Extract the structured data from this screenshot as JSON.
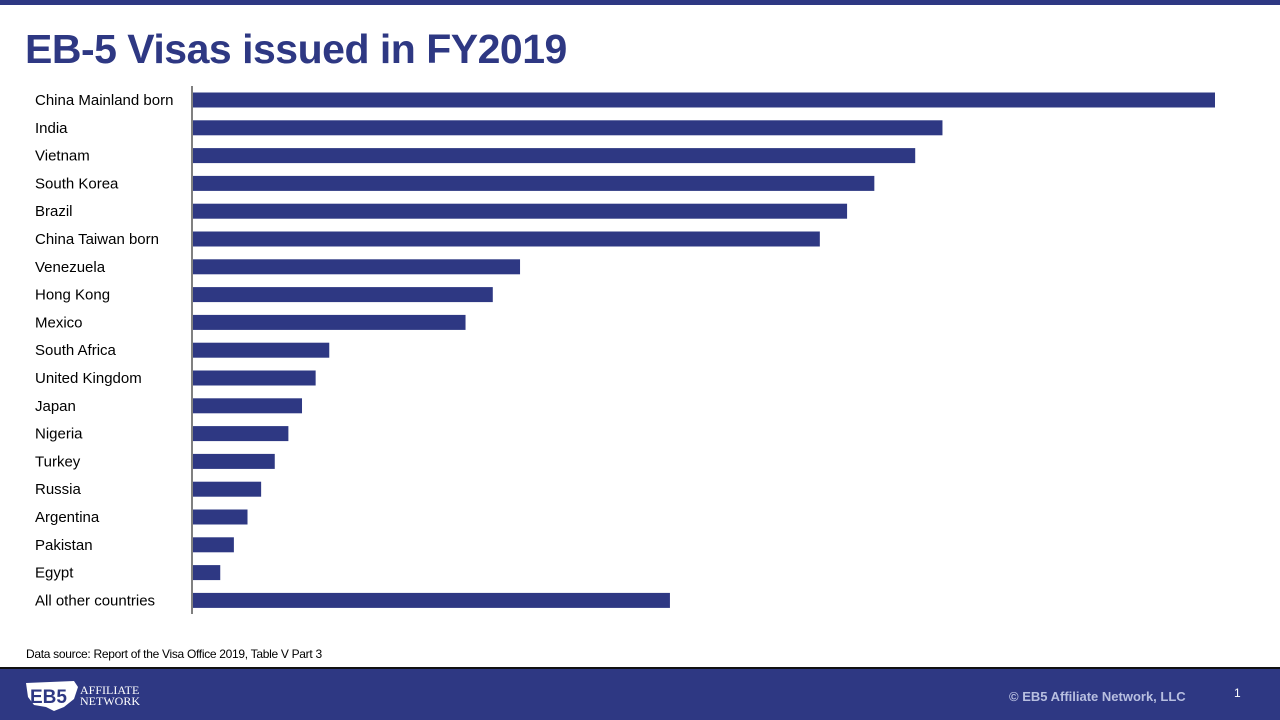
{
  "slide": {
    "title": "EB-5 Visas issued in FY2019",
    "source": "Data source: Report of the Visa Office 2019, Table V Part 3",
    "footer": {
      "logo_text_top": "AFFILIATE",
      "logo_text_bottom": "NETWORK",
      "logo_mark": "EB5",
      "copyright": "© EB5  Affiliate Network, LLC",
      "page_number": "1"
    },
    "colors": {
      "brand": "#2e3883",
      "bar": "#2e3883"
    }
  },
  "chart_data": {
    "type": "bar",
    "orientation": "horizontal",
    "title": "EB-5 Visas issued in FY2019",
    "xlabel": "",
    "ylabel": "",
    "grid": false,
    "legend": "none",
    "categories": [
      "China Mainland born",
      "India",
      "Vietnam",
      "South Korea",
      "Brazil",
      "China Taiwan born",
      "Venezuela",
      "Hong Kong",
      "Mexico",
      "South Africa",
      "United Kingdom",
      "Japan",
      "Nigeria",
      "Turkey",
      "Russia",
      "Argentina",
      "Pakistan",
      "Egypt",
      "All other countries"
    ],
    "values": [
      4500,
      3300,
      3180,
      3000,
      2880,
      2760,
      1440,
      1320,
      1200,
      600,
      540,
      480,
      420,
      360,
      300,
      240,
      180,
      120,
      2100
    ],
    "xlim": [
      0,
      4500
    ]
  }
}
